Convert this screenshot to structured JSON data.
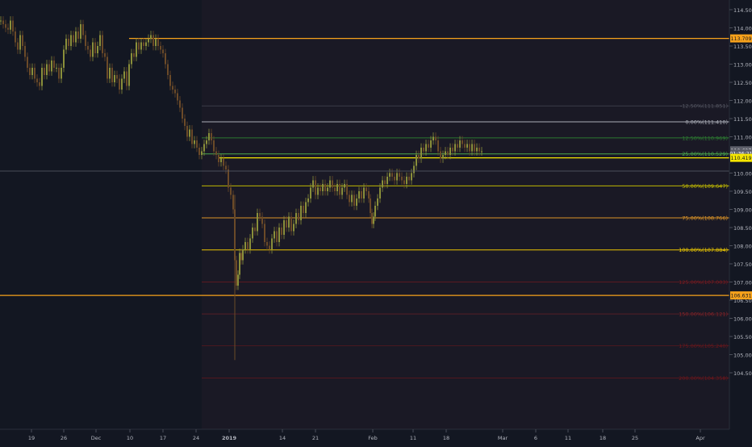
{
  "chart_data": {
    "type": "candlestick",
    "title": "",
    "xlabel": "",
    "ylabel": "",
    "ylim": [
      104.4,
      115.2
    ],
    "colors": {
      "background": "#131722",
      "up": "#8a8f3a",
      "down": "#6b4a28",
      "grid": "#1e2230",
      "axis_text": "#b2b5be"
    },
    "price_ticks": [
      "114.500",
      "114.000",
      "113.500",
      "113.000",
      "112.500",
      "112.000",
      "111.500",
      "111.000",
      "110.500",
      "110.000",
      "109.500",
      "109.000",
      "108.500",
      "108.000",
      "107.500",
      "107.000",
      "106.500",
      "106.000",
      "105.500",
      "105.000",
      "104.500"
    ],
    "date_ticks": [
      "19",
      "26",
      "Dec",
      "10",
      "17",
      "24",
      "2019",
      "14",
      "21",
      "Feb",
      "11",
      "18",
      "Mar",
      "6",
      "11",
      "18",
      "25",
      "Apr"
    ],
    "price_labels": {
      "resistance": {
        "text": "113.709",
        "value": 113.709,
        "color": "#f7a21b"
      },
      "support": {
        "text": "106.631",
        "value": 106.631,
        "color": "#f7a21b"
      },
      "last_a": {
        "text": "110.627",
        "value": 110.627,
        "color": "#5d606b"
      },
      "last_b": {
        "text": "01:36:21",
        "value": 110.54,
        "color": "#5d606b"
      },
      "current": {
        "text": "110.419",
        "value": 110.419,
        "color": "#f5e600"
      }
    },
    "fib_levels": [
      {
        "label": "-12.50%(111.851)",
        "value": 111.851,
        "color": "#787b86"
      },
      {
        "label": "0.00%(111.410)",
        "value": 111.41,
        "color": "#b2b5be"
      },
      {
        "label": "12.50%(110.969)",
        "value": 110.969,
        "color": "#2e7d32"
      },
      {
        "label": "25.00%(110.529)",
        "value": 110.529,
        "color": "#4caf50"
      },
      {
        "label": "50.00%(109.647)",
        "value": 109.647,
        "color": "#c7c000"
      },
      {
        "label": "75.00%(108.766)",
        "value": 108.766,
        "color": "#e69a27"
      },
      {
        "label": "100.00%(107.884)",
        "value": 107.884,
        "color": "#f5d000"
      },
      {
        "label": "125.00%(107.003)",
        "value": 107.003,
        "color": "#b71c1c"
      },
      {
        "label": "150.00%(106.121)",
        "value": 106.121,
        "color": "#c62828"
      },
      {
        "label": "175.00%(105.240)",
        "value": 105.24,
        "color": "#a31515"
      },
      {
        "label": "200.00%(104.358)",
        "value": 104.358,
        "color": "#a31515"
      }
    ],
    "price_series": [
      [
        0,
        114.2
      ],
      [
        3,
        114.1
      ],
      [
        6,
        114.0
      ],
      [
        9,
        113.95
      ],
      [
        12,
        114.2
      ],
      [
        15,
        113.9
      ],
      [
        18,
        113.6
      ],
      [
        21,
        113.4
      ],
      [
        24,
        113.8
      ],
      [
        27,
        113.5
      ],
      [
        30,
        113.2
      ],
      [
        33,
        112.9
      ],
      [
        36,
        112.7
      ],
      [
        39,
        112.9
      ],
      [
        42,
        112.6
      ],
      [
        45,
        112.5
      ],
      [
        48,
        112.4
      ],
      [
        51,
        112.9
      ],
      [
        54,
        112.7
      ],
      [
        57,
        113.0
      ],
      [
        60,
        112.8
      ],
      [
        63,
        113.1
      ],
      [
        66,
        112.9
      ],
      [
        69,
        112.9
      ],
      [
        72,
        112.6
      ],
      [
        75,
        112.9
      ],
      [
        78,
        113.4
      ],
      [
        81,
        113.7
      ],
      [
        84,
        113.5
      ],
      [
        87,
        113.8
      ],
      [
        90,
        113.6
      ],
      [
        93,
        113.9
      ],
      [
        96,
        113.7
      ],
      [
        99,
        114.1
      ],
      [
        102,
        113.8
      ],
      [
        105,
        113.5
      ],
      [
        108,
        113.4
      ],
      [
        111,
        113.2
      ],
      [
        114,
        113.6
      ],
      [
        117,
        113.3
      ],
      [
        120,
        113.5
      ],
      [
        123,
        113.8
      ],
      [
        126,
        113.3
      ],
      [
        129,
        113.2
      ],
      [
        132,
        112.6
      ],
      [
        135,
        112.9
      ],
      [
        138,
        112.5
      ],
      [
        141,
        112.7
      ],
      [
        144,
        112.6
      ],
      [
        147,
        112.3
      ],
      [
        150,
        112.6
      ],
      [
        153,
        112.8
      ],
      [
        156,
        112.4
      ],
      [
        159,
        113.0
      ],
      [
        162,
        113.3
      ],
      [
        165,
        113.2
      ],
      [
        168,
        113.6
      ],
      [
        171,
        113.4
      ],
      [
        174,
        113.6
      ],
      [
        177,
        113.5
      ],
      [
        180,
        113.6
      ],
      [
        183,
        113.7
      ],
      [
        186,
        113.8
      ],
      [
        189,
        113.5
      ],
      [
        192,
        113.7
      ],
      [
        195,
        113.5
      ],
      [
        198,
        113.4
      ],
      [
        201,
        113.3
      ],
      [
        204,
        113.0
      ],
      [
        207,
        112.7
      ],
      [
        210,
        112.4
      ],
      [
        213,
        112.3
      ],
      [
        216,
        112.2
      ],
      [
        219,
        112.0
      ],
      [
        222,
        111.8
      ],
      [
        225,
        111.5
      ],
      [
        228,
        111.3
      ],
      [
        231,
        111.0
      ],
      [
        234,
        111.2
      ],
      [
        237,
        110.8
      ],
      [
        240,
        110.9
      ],
      [
        243,
        110.7
      ],
      [
        246,
        110.5
      ],
      [
        249,
        110.6
      ],
      [
        252,
        110.8
      ],
      [
        255,
        110.9
      ],
      [
        258,
        111.1
      ],
      [
        261,
        110.9
      ],
      [
        264,
        110.6
      ],
      [
        267,
        110.5
      ],
      [
        270,
        110.3
      ],
      [
        273,
        110.4
      ],
      [
        276,
        110.2
      ],
      [
        279,
        110.1
      ],
      [
        282,
        109.6
      ],
      [
        285,
        109.4
      ],
      [
        288,
        109.0
      ],
      [
        290,
        107.6
      ],
      [
        292,
        106.9
      ],
      [
        294,
        107.2
      ],
      [
        296,
        107.8
      ],
      [
        298,
        107.6
      ],
      [
        300,
        107.9
      ],
      [
        303,
        108.1
      ],
      [
        306,
        107.9
      ],
      [
        309,
        108.2
      ],
      [
        312,
        108.5
      ],
      [
        315,
        108.4
      ],
      [
        318,
        108.9
      ],
      [
        321,
        108.8
      ],
      [
        324,
        108.6
      ],
      [
        327,
        108.1
      ],
      [
        330,
        108.0
      ],
      [
        333,
        107.9
      ],
      [
        336,
        108.2
      ],
      [
        339,
        108.4
      ],
      [
        342,
        108.1
      ],
      [
        345,
        108.5
      ],
      [
        348,
        108.3
      ],
      [
        351,
        108.7
      ],
      [
        354,
        108.5
      ],
      [
        357,
        108.8
      ],
      [
        360,
        108.4
      ],
      [
        363,
        108.6
      ],
      [
        366,
        108.9
      ],
      [
        369,
        108.7
      ],
      [
        372,
        109.1
      ],
      [
        375,
        108.9
      ],
      [
        378,
        109.2
      ],
      [
        381,
        109.3
      ],
      [
        384,
        109.6
      ],
      [
        387,
        109.8
      ],
      [
        390,
        109.4
      ],
      [
        393,
        109.6
      ],
      [
        396,
        109.5
      ],
      [
        399,
        109.7
      ],
      [
        402,
        109.5
      ],
      [
        405,
        109.6
      ],
      [
        408,
        109.8
      ],
      [
        411,
        109.6
      ],
      [
        414,
        109.5
      ],
      [
        417,
        109.7
      ],
      [
        420,
        109.4
      ],
      [
        423,
        109.6
      ],
      [
        426,
        109.7
      ],
      [
        429,
        109.4
      ],
      [
        432,
        109.2
      ],
      [
        435,
        109.4
      ],
      [
        438,
        109.1
      ],
      [
        441,
        109.3
      ],
      [
        444,
        109.5
      ],
      [
        447,
        109.3
      ],
      [
        450,
        109.6
      ],
      [
        453,
        109.5
      ],
      [
        456,
        109.3
      ],
      [
        458,
        108.9
      ],
      [
        460,
        108.6
      ],
      [
        462,
        108.8
      ],
      [
        464,
        109.1
      ],
      [
        467,
        109.3
      ],
      [
        470,
        109.6
      ],
      [
        473,
        109.8
      ],
      [
        476,
        109.7
      ],
      [
        479,
        109.9
      ],
      [
        482,
        110.0
      ],
      [
        485,
        109.9
      ],
      [
        488,
        109.8
      ],
      [
        491,
        110.0
      ],
      [
        494,
        109.9
      ],
      [
        497,
        109.8
      ],
      [
        500,
        109.7
      ],
      [
        503,
        109.9
      ],
      [
        506,
        109.8
      ],
      [
        509,
        110.0
      ],
      [
        512,
        110.2
      ],
      [
        515,
        110.5
      ],
      [
        518,
        110.4
      ],
      [
        521,
        110.7
      ],
      [
        524,
        110.6
      ],
      [
        527,
        110.8
      ],
      [
        530,
        110.7
      ],
      [
        533,
        110.9
      ],
      [
        536,
        111.0
      ],
      [
        539,
        110.9
      ],
      [
        542,
        110.6
      ],
      [
        545,
        110.4
      ],
      [
        548,
        110.5
      ],
      [
        551,
        110.6
      ],
      [
        554,
        110.5
      ],
      [
        557,
        110.7
      ],
      [
        560,
        110.6
      ],
      [
        563,
        110.8
      ],
      [
        566,
        110.7
      ],
      [
        569,
        110.9
      ],
      [
        572,
        110.8
      ],
      [
        575,
        110.7
      ],
      [
        578,
        110.8
      ],
      [
        581,
        110.6
      ],
      [
        584,
        110.8
      ],
      [
        587,
        110.6
      ],
      [
        590,
        110.7
      ],
      [
        593,
        110.6
      ],
      [
        596,
        110.6
      ]
    ]
  }
}
